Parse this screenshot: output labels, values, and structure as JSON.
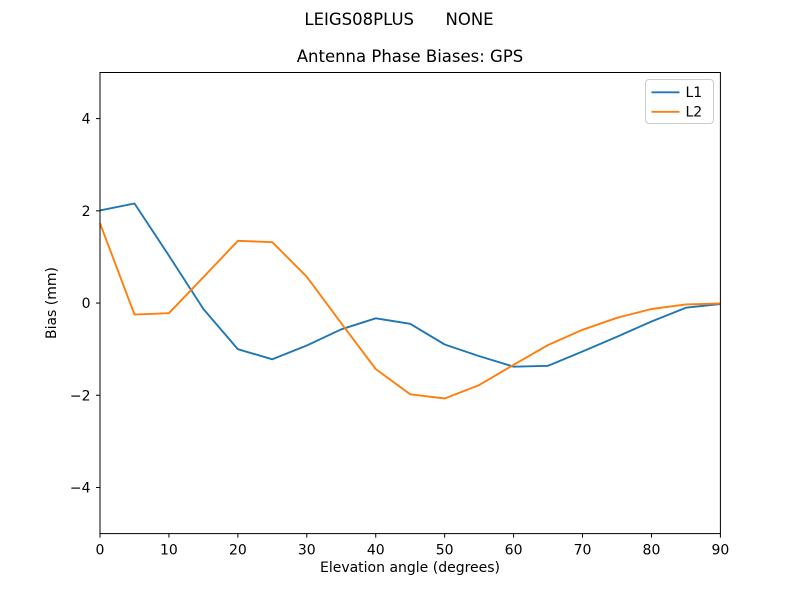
{
  "figure": {
    "suptitle": "LEIGS08PLUS      NONE",
    "background": "#ffffff"
  },
  "chart_data": {
    "type": "line",
    "title": "Antenna Phase Biases: GPS",
    "xlabel": "Elevation angle (degrees)",
    "ylabel": "Bias (mm)",
    "xlim": [
      0,
      90
    ],
    "ylim": [
      -5,
      5
    ],
    "grid": false,
    "legend_position": "upper right",
    "x": [
      0,
      5,
      10,
      15,
      20,
      25,
      30,
      35,
      40,
      45,
      50,
      55,
      60,
      65,
      70,
      75,
      80,
      85,
      90
    ],
    "series": [
      {
        "name": "L1",
        "color": "#1f77b4",
        "values": [
          2.01,
          2.16,
          1.03,
          -0.13,
          -1.0,
          -1.22,
          -0.92,
          -0.57,
          -0.33,
          -0.45,
          -0.9,
          -1.15,
          -1.38,
          -1.36,
          -1.05,
          -0.73,
          -0.4,
          -0.1,
          -0.02
        ]
      },
      {
        "name": "L2",
        "color": "#ff7f0e",
        "values": [
          1.73,
          -0.25,
          -0.22,
          0.56,
          1.35,
          1.32,
          0.57,
          -0.44,
          -1.43,
          -1.98,
          -2.07,
          -1.78,
          -1.34,
          -0.91,
          -0.58,
          -0.32,
          -0.13,
          -0.03,
          -0.01
        ]
      }
    ],
    "xticks": [
      0,
      10,
      20,
      30,
      40,
      50,
      60,
      70,
      80,
      90
    ],
    "yticks": {
      "values": [
        -4,
        -2,
        0,
        2,
        4
      ],
      "labels": [
        "−4",
        "−2",
        "0",
        "2",
        "4"
      ]
    }
  }
}
